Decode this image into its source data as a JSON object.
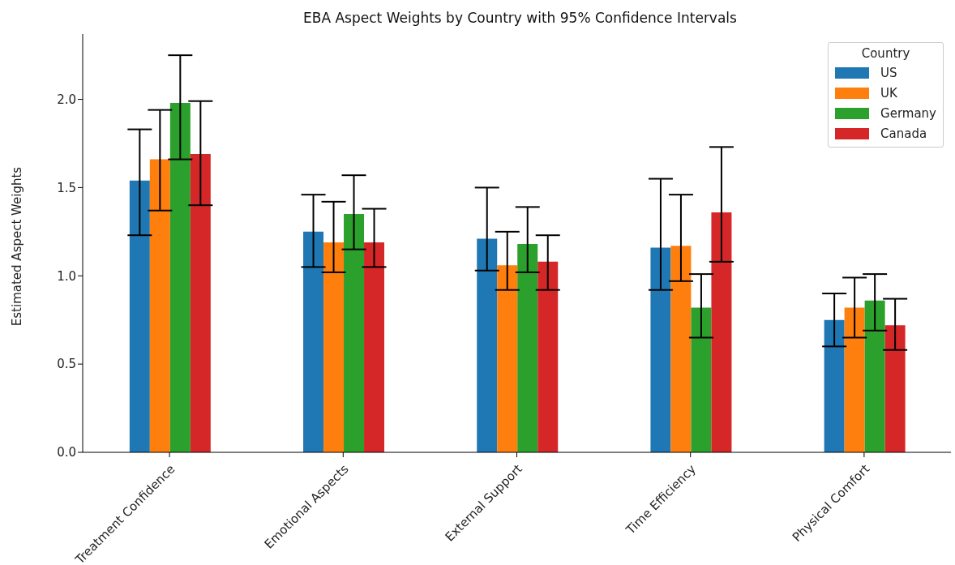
{
  "chart_data": {
    "type": "bar",
    "title": "EBA Aspect Weights by Country with 95% Confidence Intervals",
    "ylabel": "Estimated Aspect Weights",
    "legend_title": "Country",
    "legend": "top right",
    "grid": false,
    "categories": [
      "Treatment Confidence",
      "Emotional Aspects",
      "External Support",
      "Time Efficiency",
      "Physical Comfort"
    ],
    "ylim": [
      0,
      2.37
    ],
    "yticks": [
      {
        "value": 0,
        "label": "0.0"
      },
      0.5,
      {
        "value": 1,
        "label": "1.0"
      },
      1.5,
      {
        "value": 2,
        "label": "2.0"
      }
    ],
    "series": [
      {
        "name": "US",
        "color": "#1f77b4",
        "values": [
          1.54,
          1.25,
          1.21,
          1.16,
          0.75
        ],
        "errors": [
          [
            1.23,
            1.83
          ],
          [
            1.05,
            1.46
          ],
          [
            1.03,
            1.5
          ],
          [
            0.92,
            1.55
          ],
          [
            0.6,
            0.9
          ]
        ]
      },
      {
        "name": "UK",
        "color": "#ff7f0e",
        "values": [
          1.66,
          1.19,
          1.06,
          1.17,
          0.82
        ],
        "errors": [
          [
            1.37,
            1.94
          ],
          [
            1.02,
            1.42
          ],
          [
            0.92,
            1.25
          ],
          [
            0.97,
            1.46
          ],
          [
            0.65,
            0.99
          ]
        ]
      },
      {
        "name": "Germany",
        "color": "#2ca02c",
        "values": [
          1.98,
          1.35,
          1.18,
          0.82,
          0.86
        ],
        "errors": [
          [
            1.66,
            2.25
          ],
          [
            1.15,
            1.57
          ],
          [
            1.02,
            1.39
          ],
          [
            0.65,
            1.01
          ],
          [
            0.69,
            1.01
          ]
        ]
      },
      {
        "name": "Canada",
        "color": "#d62728",
        "values": [
          1.69,
          1.19,
          1.08,
          1.36,
          0.72
        ],
        "errors": [
          [
            1.4,
            1.99
          ],
          [
            1.05,
            1.38
          ],
          [
            0.92,
            1.23
          ],
          [
            1.08,
            1.73
          ],
          [
            0.58,
            0.87
          ]
        ]
      }
    ]
  }
}
